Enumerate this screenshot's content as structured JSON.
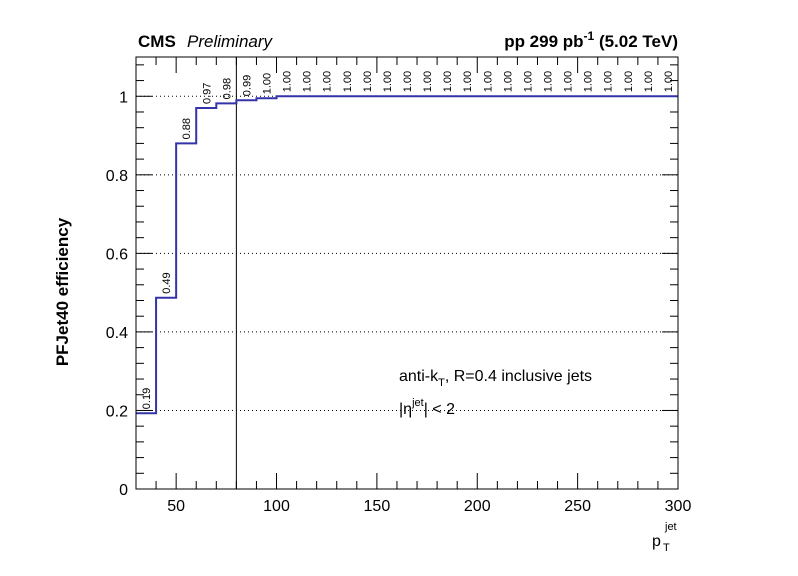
{
  "header": {
    "left_bold": "CMS",
    "left_italic": "Preliminary",
    "right": "pp 299 pb",
    "right_sup": "-1",
    "right_tail": " (5.02 TeV)"
  },
  "chart_data": {
    "type": "line",
    "style": "step-histogram",
    "ylabel": "PFJet40 efficiency",
    "xlabel": "p",
    "xlabel_sup": "jet",
    "xlabel_sub": "T",
    "xlim": [
      30,
      300
    ],
    "ylim": [
      0,
      1.1
    ],
    "grid": "horizontal-dotted",
    "x_ticks": [
      50,
      100,
      150,
      200,
      250,
      300
    ],
    "y_ticks": [
      0,
      0.2,
      0.4,
      0.6,
      0.8,
      1
    ],
    "x_tick_labels": [
      "50",
      "100",
      "150",
      "200",
      "250",
      "300"
    ],
    "y_tick_labels": [
      "0",
      "0.2",
      "0.4",
      "0.6",
      "0.8",
      "1"
    ],
    "bin_edges": [
      30,
      40,
      50,
      60,
      70,
      80,
      90,
      100,
      110,
      120,
      130,
      140,
      150,
      160,
      170,
      180,
      190,
      200,
      210,
      220,
      230,
      240,
      250,
      260,
      270,
      280,
      290,
      300
    ],
    "values": [
      0.193,
      0.487,
      0.88,
      0.97,
      0.982,
      0.99,
      0.995,
      1.0,
      1.0,
      1.0,
      1.0,
      1.0,
      1.0,
      1.0,
      1.0,
      1.0,
      1.0,
      1.0,
      1.0,
      1.0,
      1.0,
      1.0,
      1.0,
      1.0,
      1.0,
      1.0,
      1.0
    ],
    "labels": [
      "0.19",
      "0.49",
      "0.88",
      "0.97",
      "0.98",
      "0.99",
      "1.00",
      "1.00",
      "1.00",
      "1.00",
      "1.00",
      "1.00",
      "1.00",
      "1.00",
      "1.00",
      "1.00",
      "1.00",
      "1.00",
      "1.00",
      "1.00",
      "1.00",
      "1.00",
      "1.00",
      "1.00",
      "1.00",
      "1.00",
      "1.00"
    ],
    "vertical_line_x": 80,
    "line_color": "#3333aa",
    "annotations": {
      "line1_pre": "anti-k",
      "line1_sub": "T",
      "line1_post": ", R=0.4 inclusive jets",
      "line2_pre": "|",
      "line2_eta": "η",
      "line2_sup": "jet",
      "line2_post": "| < 2"
    }
  }
}
